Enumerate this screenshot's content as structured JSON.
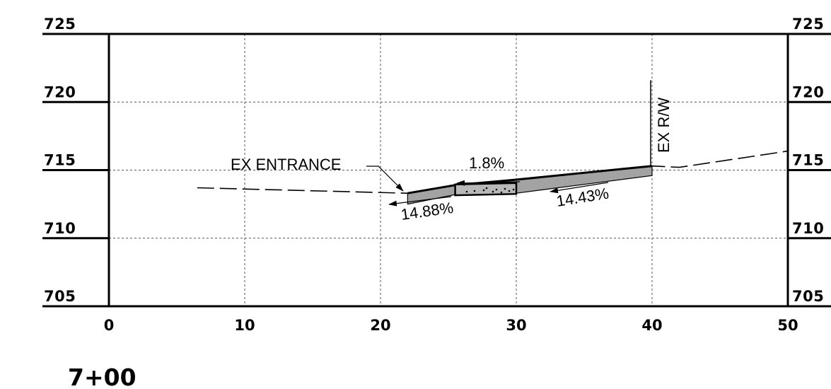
{
  "chart_data": {
    "type": "cross-section",
    "station": "7+00",
    "elevation_ticks": [
      725,
      720,
      715,
      710,
      705
    ],
    "offset_ticks": [
      0,
      10,
      20,
      30,
      40,
      50
    ],
    "xlim": [
      0,
      50
    ],
    "ylim": [
      705,
      725
    ],
    "grid": "dashed",
    "existing_ground": [
      [
        6.5,
        713.7
      ],
      [
        22.0,
        713.3
      ],
      [
        25.5,
        713.9
      ],
      [
        30.0,
        714.3
      ],
      [
        40.0,
        715.3
      ],
      [
        42.0,
        715.2
      ],
      [
        50.0,
        716.4
      ]
    ],
    "entrance_top": [
      [
        22.0,
        713.3
      ],
      [
        25.5,
        713.9
      ],
      [
        30.0,
        714.3
      ],
      [
        40.0,
        715.3
      ]
    ],
    "entrance_bottom": [
      [
        22.0,
        712.5
      ],
      [
        25.5,
        713.2
      ],
      [
        30.0,
        713.3
      ],
      [
        40.0,
        714.6
      ]
    ],
    "row_line": {
      "x": 40,
      "y_top": 721.6,
      "y_bottom": 715.3
    },
    "annotations": {
      "entrance": "EX ENTRANCE",
      "row": "EX R/W",
      "slope_top": "1.8%",
      "slope_left": "14.88%",
      "slope_right": "14.43%"
    }
  }
}
